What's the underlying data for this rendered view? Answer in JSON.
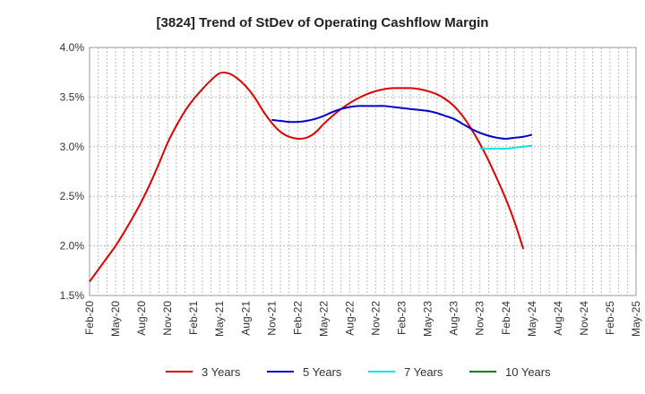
{
  "chart_data": {
    "type": "line",
    "title": "[3824]  Trend of StDev of Operating Cashflow Margin",
    "xlabel": "",
    "ylabel": "",
    "x_ticks": [
      "Feb-20",
      "May-20",
      "Aug-20",
      "Nov-20",
      "Feb-21",
      "May-21",
      "Aug-21",
      "Nov-21",
      "Feb-22",
      "May-22",
      "Aug-22",
      "Nov-22",
      "Feb-23",
      "May-23",
      "Aug-23",
      "Nov-23",
      "Feb-24",
      "May-24",
      "Aug-24",
      "Nov-24",
      "Feb-25",
      "May-25"
    ],
    "y_ticks": [
      "1.5%",
      "2.0%",
      "2.5%",
      "3.0%",
      "3.5%",
      "4.0%"
    ],
    "ylim": [
      1.5,
      4.0
    ],
    "grid": true,
    "legend_position": "bottom",
    "series": [
      {
        "name": "3 Years",
        "color": "#dd0000",
        "points": [
          [
            "Feb-20",
            1.64
          ],
          [
            "Mar-20",
            1.76
          ],
          [
            "Apr-20",
            1.88
          ],
          [
            "May-20",
            2.0
          ],
          [
            "Jun-20",
            2.14
          ],
          [
            "Jul-20",
            2.29
          ],
          [
            "Aug-20",
            2.45
          ],
          [
            "Sep-20",
            2.63
          ],
          [
            "Oct-20",
            2.83
          ],
          [
            "Nov-20",
            3.04
          ],
          [
            "Dec-20",
            3.21
          ],
          [
            "Jan-21",
            3.36
          ],
          [
            "Feb-21",
            3.48
          ],
          [
            "Mar-21",
            3.58
          ],
          [
            "Apr-21",
            3.67
          ],
          [
            "May-21",
            3.74
          ],
          [
            "Jun-21",
            3.74
          ],
          [
            "Jul-21",
            3.69
          ],
          [
            "Aug-21",
            3.61
          ],
          [
            "Sep-21",
            3.5
          ],
          [
            "Oct-21",
            3.36
          ],
          [
            "Nov-21",
            3.24
          ],
          [
            "Dec-21",
            3.15
          ],
          [
            "Jan-22",
            3.1
          ],
          [
            "Feb-22",
            3.08
          ],
          [
            "Mar-22",
            3.09
          ],
          [
            "Apr-22",
            3.14
          ],
          [
            "May-22",
            3.23
          ],
          [
            "Jun-22",
            3.31
          ],
          [
            "Jul-22",
            3.38
          ],
          [
            "Aug-22",
            3.44
          ],
          [
            "Sep-22",
            3.49
          ],
          [
            "Oct-22",
            3.53
          ],
          [
            "Nov-22",
            3.56
          ],
          [
            "Dec-22",
            3.58
          ],
          [
            "Jan-23",
            3.59
          ],
          [
            "Feb-23",
            3.59
          ],
          [
            "Mar-23",
            3.59
          ],
          [
            "Apr-23",
            3.58
          ],
          [
            "May-23",
            3.56
          ],
          [
            "Jun-23",
            3.53
          ],
          [
            "Jul-23",
            3.48
          ],
          [
            "Aug-23",
            3.41
          ],
          [
            "Sep-23",
            3.31
          ],
          [
            "Oct-23",
            3.18
          ],
          [
            "Nov-23",
            3.03
          ],
          [
            "Dec-23",
            2.86
          ],
          [
            "Jan-24",
            2.67
          ],
          [
            "Feb-24",
            2.47
          ],
          [
            "Mar-24",
            2.24
          ],
          [
            "Apr-24",
            1.97
          ]
        ]
      },
      {
        "name": "5 Years",
        "color": "#0000cc",
        "points": [
          [
            "Nov-21",
            3.27
          ],
          [
            "Dec-21",
            3.26
          ],
          [
            "Jan-22",
            3.25
          ],
          [
            "Feb-22",
            3.25
          ],
          [
            "Mar-22",
            3.26
          ],
          [
            "Apr-22",
            3.28
          ],
          [
            "May-22",
            3.31
          ],
          [
            "Jun-22",
            3.35
          ],
          [
            "Jul-22",
            3.38
          ],
          [
            "Aug-22",
            3.4
          ],
          [
            "Sep-22",
            3.41
          ],
          [
            "Oct-22",
            3.41
          ],
          [
            "Nov-22",
            3.41
          ],
          [
            "Dec-22",
            3.41
          ],
          [
            "Jan-23",
            3.4
          ],
          [
            "Feb-23",
            3.39
          ],
          [
            "Mar-23",
            3.38
          ],
          [
            "Apr-23",
            3.37
          ],
          [
            "May-23",
            3.36
          ],
          [
            "Jun-23",
            3.34
          ],
          [
            "Jul-23",
            3.31
          ],
          [
            "Aug-23",
            3.28
          ],
          [
            "Sep-23",
            3.23
          ],
          [
            "Oct-23",
            3.18
          ],
          [
            "Nov-23",
            3.14
          ],
          [
            "Dec-23",
            3.11
          ],
          [
            "Jan-24",
            3.09
          ],
          [
            "Feb-24",
            3.08
          ],
          [
            "Mar-24",
            3.09
          ],
          [
            "Apr-24",
            3.1
          ],
          [
            "May-24",
            3.12
          ]
        ]
      },
      {
        "name": "7 Years",
        "color": "#00e5e5",
        "points": [
          [
            "Nov-23",
            2.98
          ],
          [
            "Dec-23",
            2.98
          ],
          [
            "Jan-24",
            2.98
          ],
          [
            "Feb-24",
            2.98
          ],
          [
            "Mar-24",
            2.99
          ],
          [
            "Apr-24",
            3.0
          ],
          [
            "May-24",
            3.01
          ]
        ]
      },
      {
        "name": "10 Years",
        "color": "#008000",
        "points": []
      }
    ]
  }
}
